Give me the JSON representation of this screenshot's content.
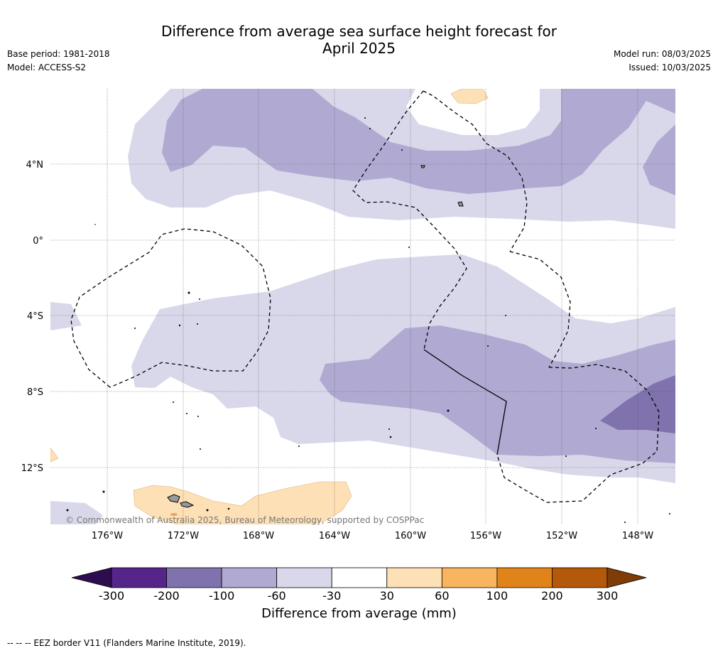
{
  "header": {
    "title_line1": "Difference from average sea surface height forecast for",
    "title_line2": "April 2025",
    "base_period": "Base period: 1981-2018",
    "model": "Model: ACCESS-S2",
    "model_run": "Model run: 08/03/2025",
    "issued": "Issued: 10/03/2025"
  },
  "map": {
    "lat_labels": [
      "4°N",
      "0°",
      "4°S",
      "8°S",
      "12°S"
    ],
    "lon_labels": [
      "176°W",
      "172°W",
      "168°W",
      "164°W",
      "160°W",
      "156°W",
      "152°W",
      "148°W"
    ],
    "copyright": "© Commonwealth of Australia 2025, Bureau of Meteorology, supported by COSPPac",
    "colors": {
      "minus_100_to_60": "#b0aad2",
      "minus_60_to_30": "#d8d8ea",
      "minus_200_to_100": "#8072ac",
      "plus_30_to_60": "#fde0b6",
      "land": "#999999",
      "eez_border": "#000000"
    }
  },
  "legend": {
    "title": "Difference from average (mm)",
    "tick_labels": [
      "-300",
      "-200",
      "-100",
      "-60",
      "-30",
      "30",
      "60",
      "100",
      "200",
      "300"
    ],
    "colors": [
      "#2e0d4f",
      "#55258a",
      "#8072ac",
      "#b0aad2",
      "#d8d8ea",
      "#ffffff",
      "#fde0b6",
      "#f9b45f",
      "#e08319",
      "#b45809",
      "#7f3c07"
    ]
  },
  "footnote": "--  --  -- EEZ border V11 (Flanders Marine Institute, 2019)."
}
